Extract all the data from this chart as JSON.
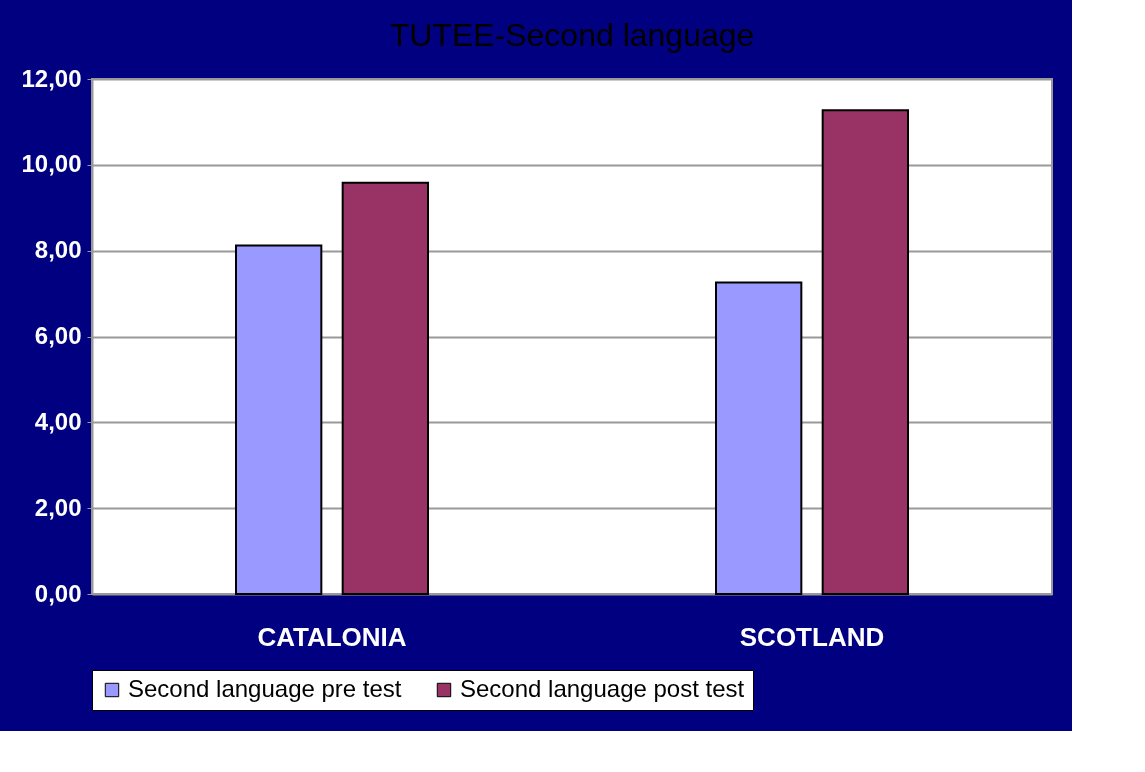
{
  "chart_data": {
    "type": "bar",
    "title": "TUTEE-Second language",
    "categories": [
      "CATALONIA",
      "SCOTLAND"
    ],
    "series": [
      {
        "name": "Second language pre test",
        "color": "#9999ff",
        "values": [
          8.12,
          7.26
        ]
      },
      {
        "name": "Second language post test",
        "color": "#993366",
        "values": [
          9.58,
          11.27
        ]
      }
    ],
    "ylim": [
      0,
      12
    ],
    "yticks": [
      {
        "value": 0,
        "label": "0,00"
      },
      {
        "value": 2,
        "label": "2,00"
      },
      {
        "value": 4,
        "label": "4,00"
      },
      {
        "value": 6,
        "label": "6,00"
      },
      {
        "value": 8,
        "label": "8,00"
      },
      {
        "value": 10,
        "label": "10,00"
      },
      {
        "value": 12,
        "label": "12,00"
      }
    ],
    "grid": "y",
    "legend": "bottom"
  }
}
